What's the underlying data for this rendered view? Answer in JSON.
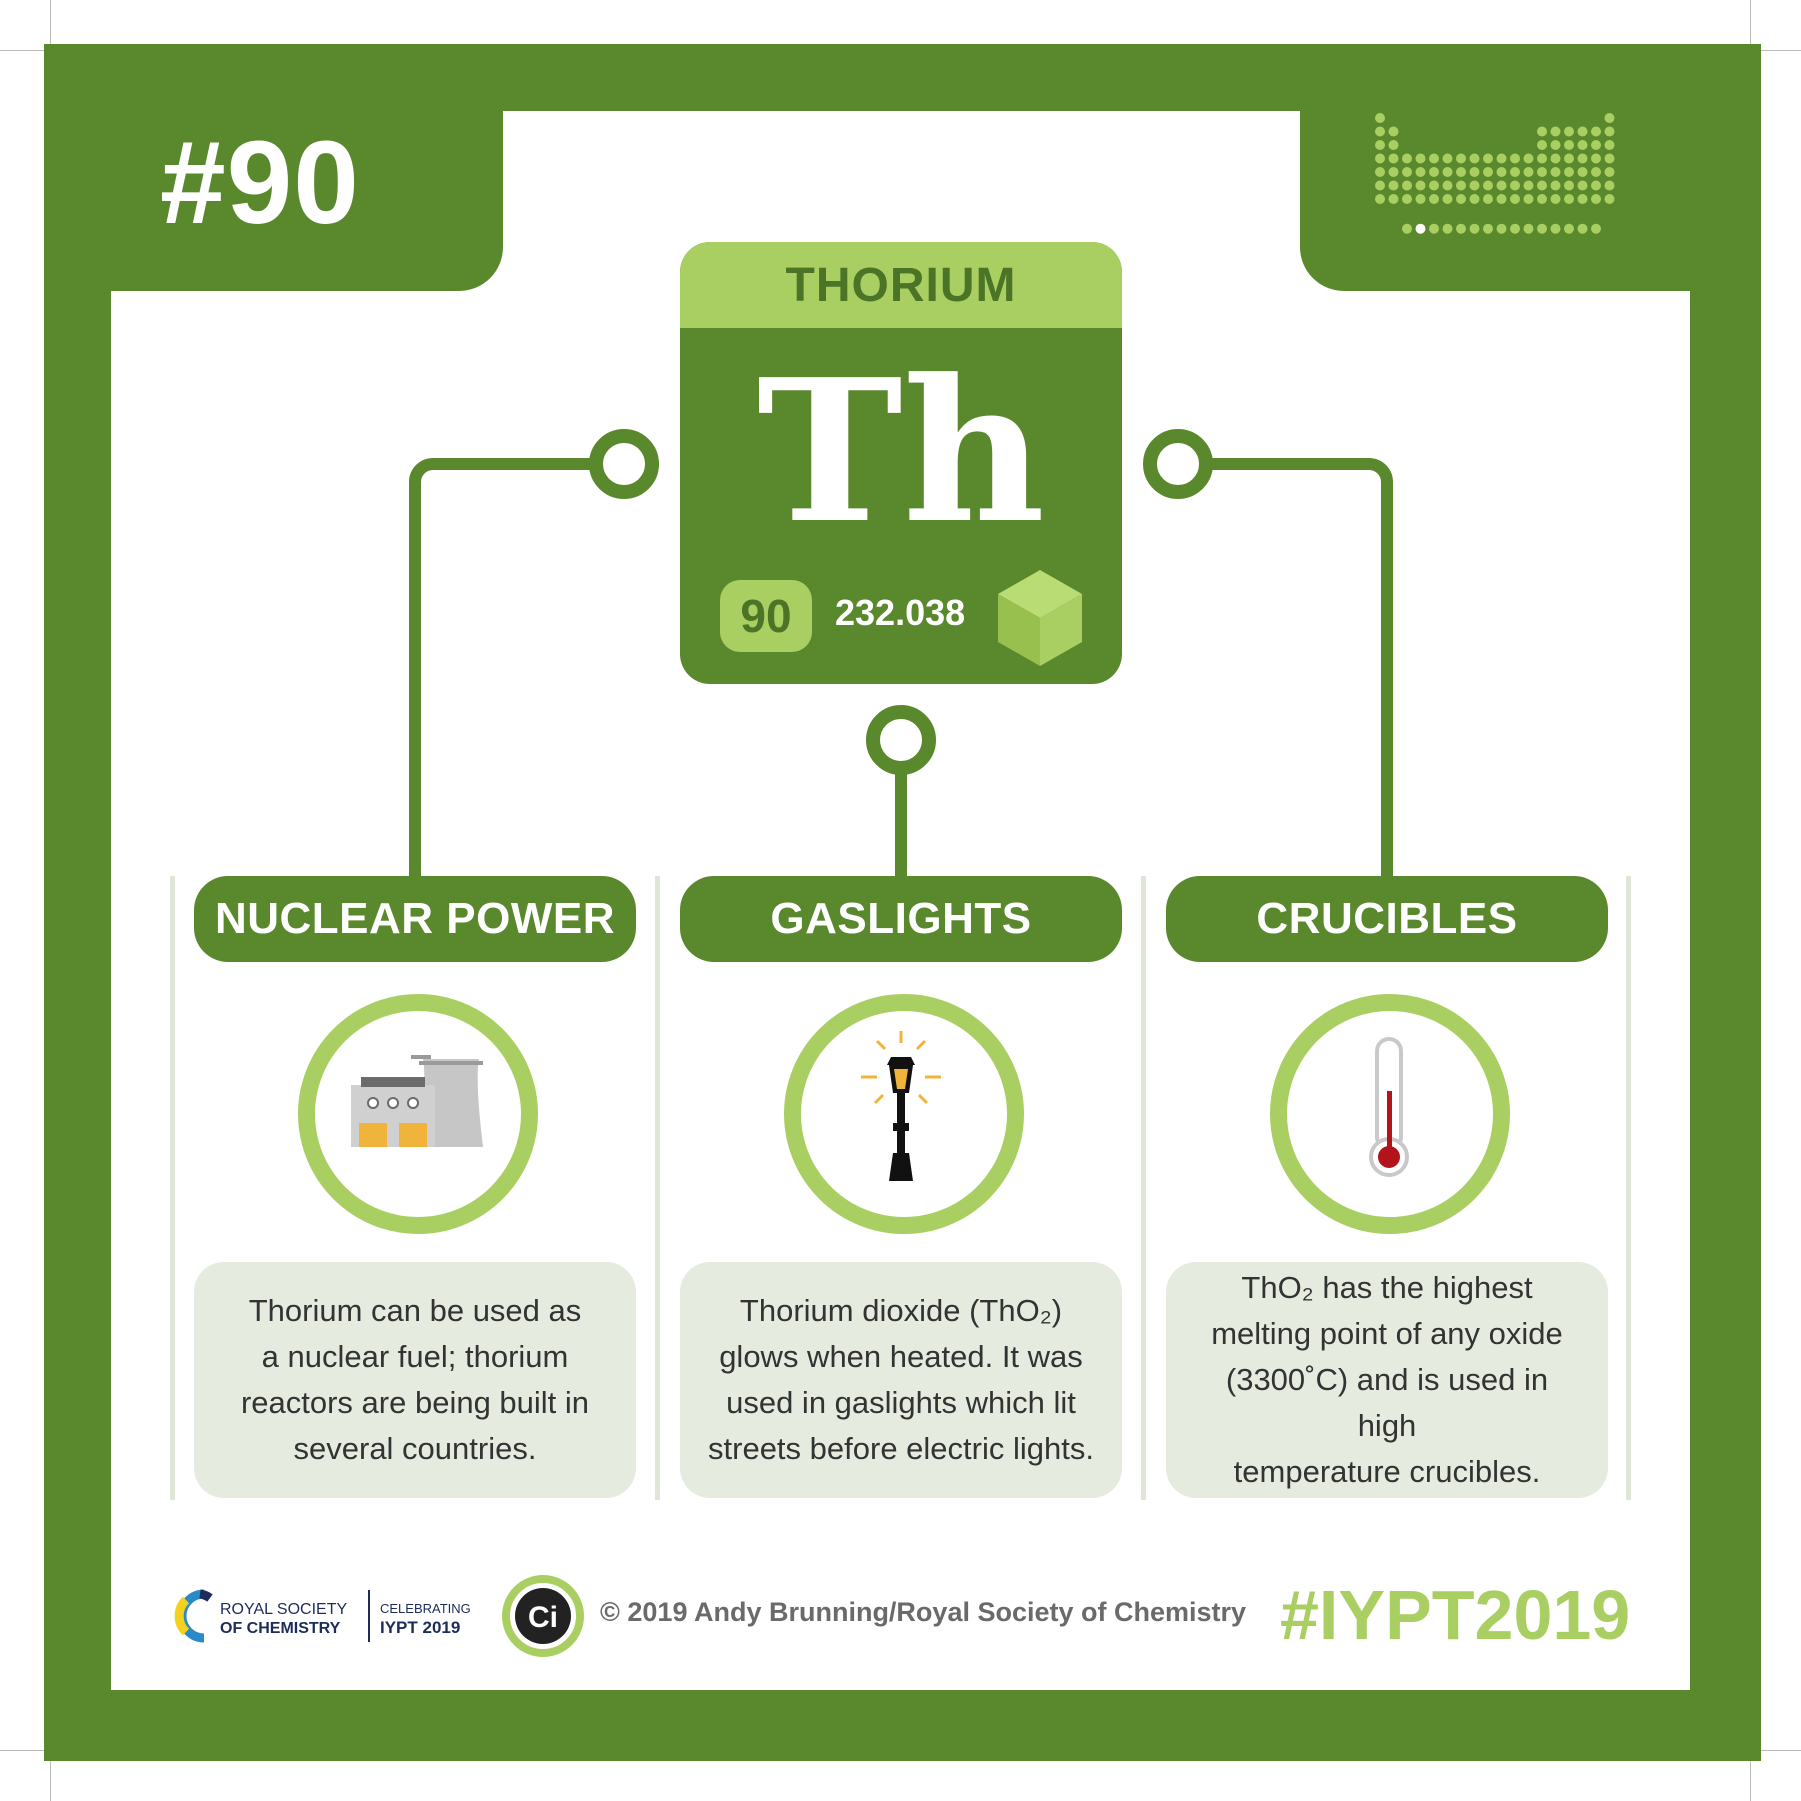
{
  "badge": {
    "number": "#90"
  },
  "element": {
    "name": "THORIUM",
    "symbol": "Th",
    "atomic_number": "90",
    "atomic_mass": "232.038"
  },
  "categories": [
    {
      "title": "NUCLEAR POWER",
      "icon": "power-station-icon",
      "text": [
        "Thorium can be used as",
        "a nuclear fuel; thorium",
        "reactors are being built in",
        "several countries."
      ]
    },
    {
      "title": "GASLIGHTS",
      "icon": "street-lamp-icon",
      "text": [
        "Thorium dioxide (ThO₂)",
        "glows when heated. It was",
        "used in gaslights which lit",
        "streets before electric lights."
      ]
    },
    {
      "title": "CRUCIBLES",
      "icon": "thermometer-icon",
      "text": [
        "ThO₂ has the highest",
        "melting point of any oxide",
        "(3300˚C) and is used in high",
        "temperature crucibles."
      ]
    }
  ],
  "footer": {
    "rsc_line1": "ROYAL SOCIETY",
    "rsc_line2": "OF CHEMISTRY",
    "celebrating": "CELEBRATING",
    "iypt": "IYPT 2019",
    "ci": "Ci",
    "copyright": "© 2019 Andy Brunning/Royal Society of Chemistry",
    "hashtag": "#IYPT2019"
  },
  "colors": {
    "dark_green": "#5a882c",
    "light_green": "#a9cf63",
    "panel": "#e6ebe0"
  }
}
